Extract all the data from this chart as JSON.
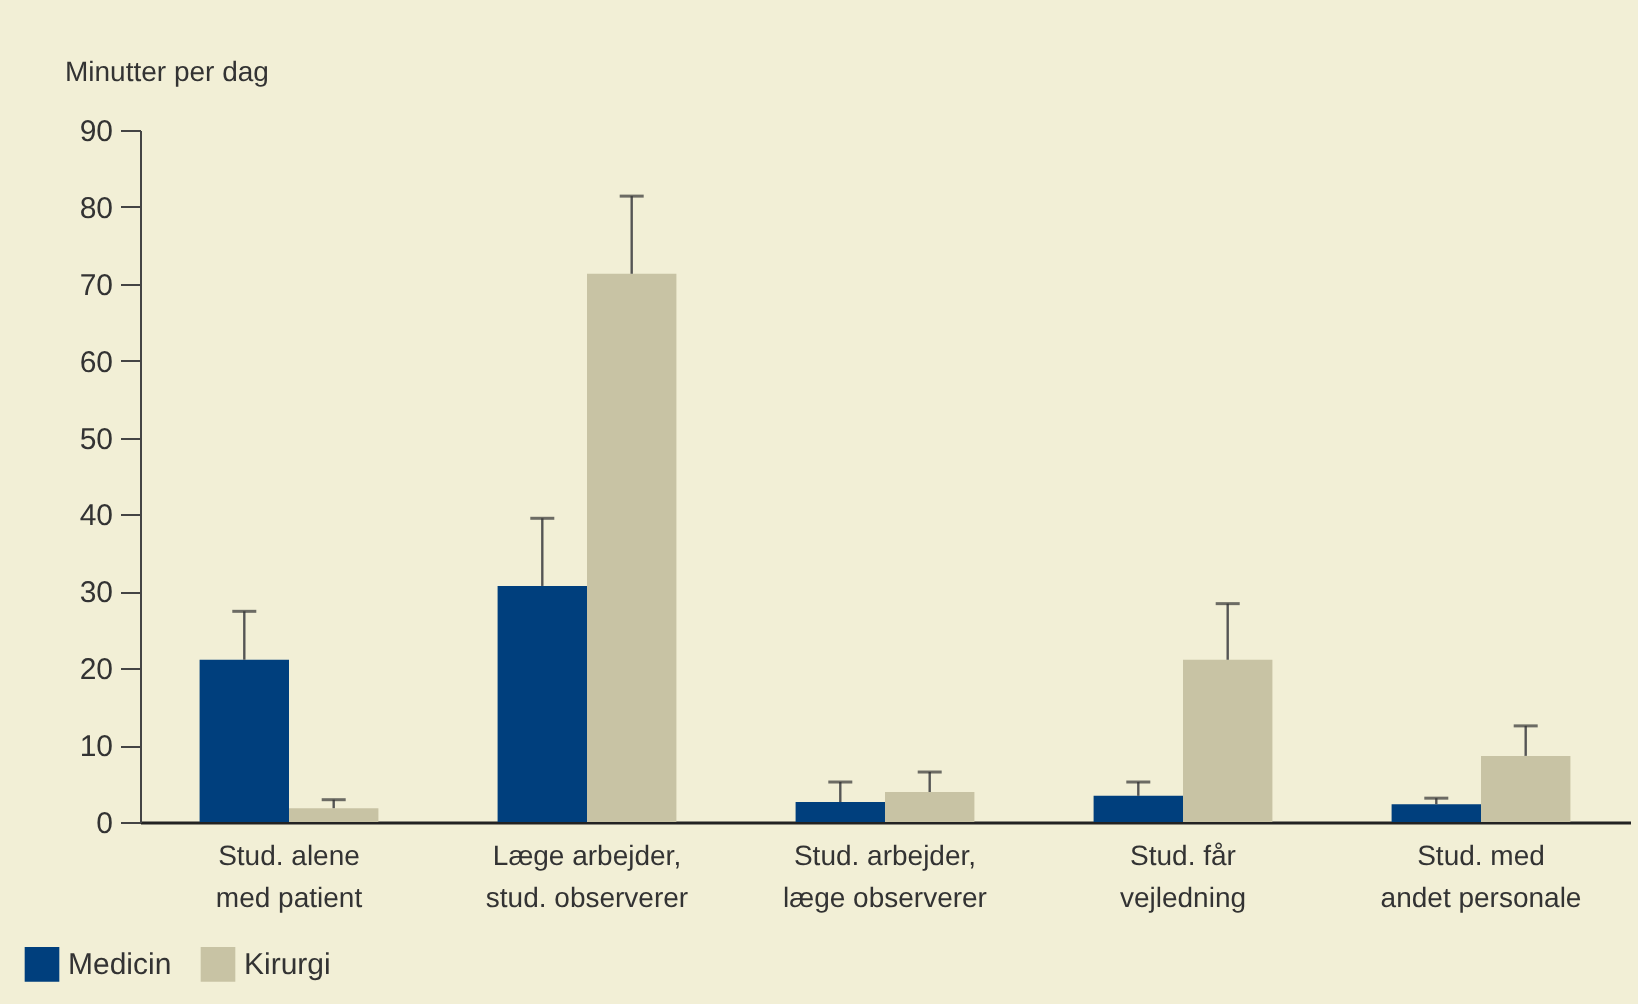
{
  "chart_data": {
    "type": "bar",
    "ylabel": "Minutter per dag",
    "categories": [
      "Stud. alene\nmed patient",
      "Læge arbejder,\nstud. observerer",
      "Stud. arbejder,\nlæge observerer",
      "Stud. får\nvejledning",
      "Stud. med\nandet personale"
    ],
    "series": [
      {
        "name": "Medicin",
        "color": "#003f7d",
        "values": [
          21.1,
          30.7,
          2.6,
          3.4,
          2.3
        ],
        "errors": [
          [
            21.1,
            27.4
          ],
          [
            30.7,
            39.5
          ],
          [
            2.6,
            5.2
          ],
          [
            3.4,
            5.2
          ],
          [
            2.3,
            3.1
          ]
        ]
      },
      {
        "name": "Kirurgi",
        "color": "#c8c3a4",
        "values": [
          1.8,
          71.3,
          3.9,
          21.1,
          8.6
        ],
        "errors": [
          [
            1.8,
            2.9
          ],
          [
            71.3,
            81.4
          ],
          [
            3.9,
            6.5
          ],
          [
            21.1,
            28.4
          ],
          [
            8.6,
            12.5
          ]
        ]
      }
    ],
    "ylim": [
      0,
      90
    ],
    "yticks": [
      0,
      10,
      20,
      30,
      40,
      50,
      60,
      70,
      80,
      90
    ],
    "grid": false,
    "legend": "bottom left"
  }
}
